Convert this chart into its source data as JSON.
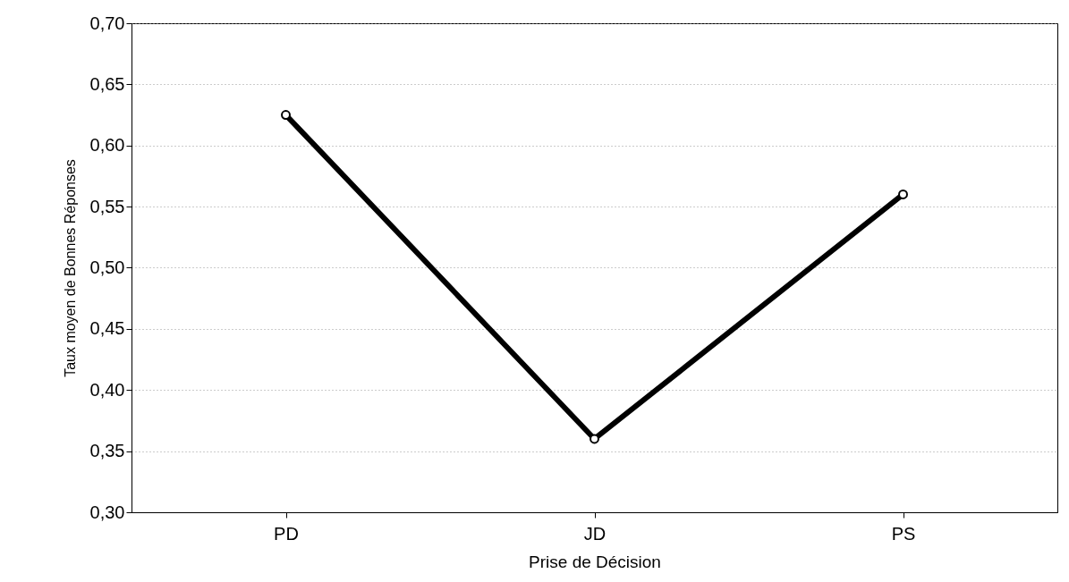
{
  "chart_data": {
    "type": "line",
    "xlabel": "Prise de Décision",
    "ylabel": "Taux moyen de Bonnes Réponses",
    "categories": [
      "PD",
      "JD",
      "PS"
    ],
    "series": [
      {
        "color": "#000000",
        "values": [
          0.625,
          0.36,
          0.56
        ]
      }
    ],
    "ylim": [
      0.3,
      0.7
    ],
    "yticks": [
      {
        "value": 0.3,
        "label": "0,30"
      },
      {
        "value": 0.35,
        "label": "0,35"
      },
      {
        "value": 0.4,
        "label": "0,40"
      },
      {
        "value": 0.45,
        "label": "0,45"
      },
      {
        "value": 0.5,
        "label": "0,50"
      },
      {
        "value": 0.55,
        "label": "0,55"
      },
      {
        "value": 0.6,
        "label": "0,60"
      },
      {
        "value": 0.65,
        "label": "0,65"
      },
      {
        "value": 0.7,
        "label": "0,70"
      }
    ],
    "grid": "y",
    "marker": "circle",
    "line_style": "solid",
    "legend": false
  }
}
